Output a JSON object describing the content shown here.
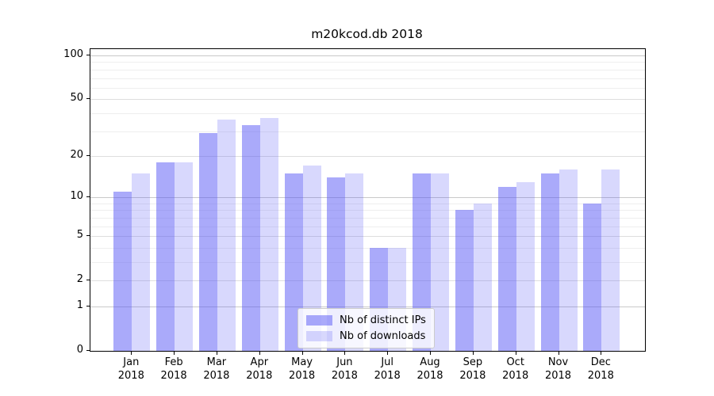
{
  "chart_data": {
    "type": "bar",
    "title": "m20kcod.db 2018",
    "categories": [
      "Jan",
      "Feb",
      "Mar",
      "Apr",
      "May",
      "Jun",
      "Jul",
      "Aug",
      "Sep",
      "Oct",
      "Nov",
      "Dec"
    ],
    "year_label": "2018",
    "series": [
      {
        "name": "Nb of distinct IPs",
        "color": "rgba(85,85,245,0.5)",
        "values": [
          11,
          18,
          29,
          33,
          15,
          14,
          4,
          15,
          8,
          12,
          15,
          9
        ]
      },
      {
        "name": "Nb of downloads",
        "color": "rgba(85,85,245,0.23)",
        "values": [
          15,
          18,
          36,
          37,
          17,
          15,
          4,
          15,
          9,
          13,
          16,
          16
        ]
      }
    ],
    "yticks": [
      0,
      1,
      2,
      5,
      10,
      20,
      50,
      100
    ],
    "major_gridlines": [
      1,
      10,
      100
    ],
    "mid_gridlines": [
      2,
      5,
      20,
      50
    ],
    "minor_gridlines": [
      3,
      4,
      6,
      7,
      8,
      9,
      30,
      40,
      60,
      70,
      80,
      90
    ],
    "scale": "log1p",
    "ylim": [
      0,
      110
    ],
    "legend_position": "lower center",
    "colors": {
      "bars_base": "#5555f5",
      "grid_major": "#c9c9c9",
      "grid_minor": "#eeeeee",
      "axis": "#000000"
    }
  }
}
